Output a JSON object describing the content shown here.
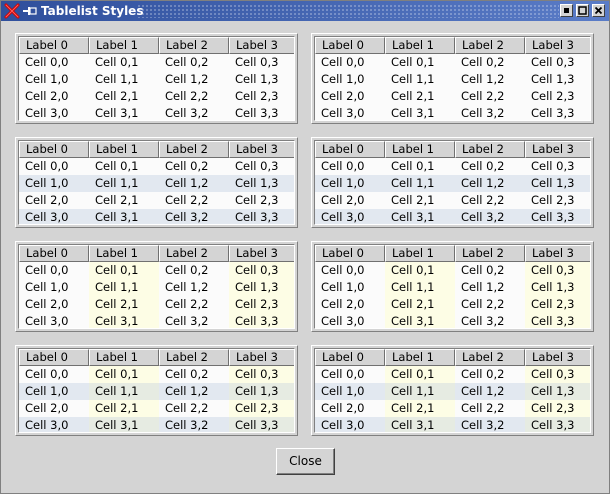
{
  "window": {
    "title": "Tablelist Styles"
  },
  "columns": [
    "Label 0",
    "Label 1",
    "Label 2",
    "Label 3"
  ],
  "rows": [
    [
      "Cell 0,0",
      "Cell 0,1",
      "Cell 0,2",
      "Cell 0,3"
    ],
    [
      "Cell 1,0",
      "Cell 1,1",
      "Cell 1,2",
      "Cell 1,3"
    ],
    [
      "Cell 2,0",
      "Cell 2,1",
      "Cell 2,2",
      "Cell 2,3"
    ],
    [
      "Cell 3,0",
      "Cell 3,1",
      "Cell 3,2",
      "Cell 3,3"
    ]
  ],
  "colors": {
    "background": "#fbfbfb",
    "stripe": "#e2e8f0",
    "column_highlight": "#fdfde5",
    "stripe_and_column": "#e6ebe2"
  },
  "tables": [
    {
      "name": "plain-1",
      "striped": false,
      "highlight_columns": []
    },
    {
      "name": "plain-2",
      "striped": false,
      "highlight_columns": []
    },
    {
      "name": "striped-rows-1",
      "striped": true,
      "highlight_columns": []
    },
    {
      "name": "striped-rows-2",
      "striped": true,
      "highlight_columns": []
    },
    {
      "name": "highlighted-columns-1",
      "striped": false,
      "highlight_columns": [
        1,
        3
      ]
    },
    {
      "name": "highlighted-columns-2",
      "striped": false,
      "highlight_columns": [
        1,
        3
      ]
    },
    {
      "name": "striped-highlighted-1",
      "striped": true,
      "highlight_columns": [
        1,
        3
      ]
    },
    {
      "name": "striped-highlighted-2",
      "striped": true,
      "highlight_columns": [
        1,
        3
      ]
    }
  ],
  "buttons": {
    "close_label": "Close"
  }
}
